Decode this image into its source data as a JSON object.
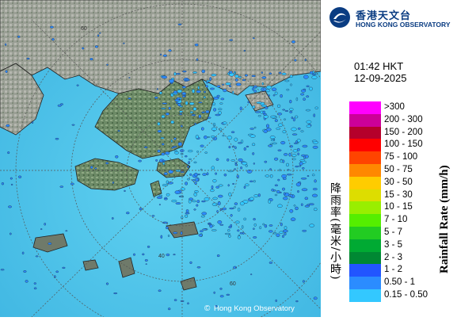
{
  "header": {
    "org_cn": "香港天文台",
    "org_en": "HONG KONG OBSERVATORY"
  },
  "timestamp": {
    "time": "01:42 HKT",
    "date": "12-09-2025"
  },
  "legend": {
    "title_cn": "降雨率(毫米/小時)",
    "title_en": "Rainfall Rate (mm/h)",
    "items": [
      {
        "label": ">300",
        "color": "#ff00ff"
      },
      {
        "label": "200 - 300",
        "color": "#cc0099"
      },
      {
        "label": "150 - 200",
        "color": "#b5002b"
      },
      {
        "label": "100 - 150",
        "color": "#ff0000"
      },
      {
        "label": "75 - 100",
        "color": "#ff4400"
      },
      {
        "label": "50 - 75",
        "color": "#ff8800"
      },
      {
        "label": "30 - 50",
        "color": "#ffcc00"
      },
      {
        "label": "15 - 30",
        "color": "#dddd00"
      },
      {
        "label": "10 - 15",
        "color": "#99ee00"
      },
      {
        "label": "7 - 10",
        "color": "#55ee00"
      },
      {
        "label": "5 - 7",
        "color": "#22cc22"
      },
      {
        "label": "3 - 5",
        "color": "#00aa33"
      },
      {
        "label": "2 - 3",
        "color": "#008833"
      },
      {
        "label": "1 - 2",
        "color": "#2255ff"
      },
      {
        "label": "0.50 - 1",
        "color": "#2b8cff"
      },
      {
        "label": "0.15 - 0.50",
        "color": "#33c8ff"
      }
    ]
  },
  "map": {
    "range_rings": [
      "40",
      "60"
    ],
    "copyright": "Hong Kong Observatory"
  }
}
